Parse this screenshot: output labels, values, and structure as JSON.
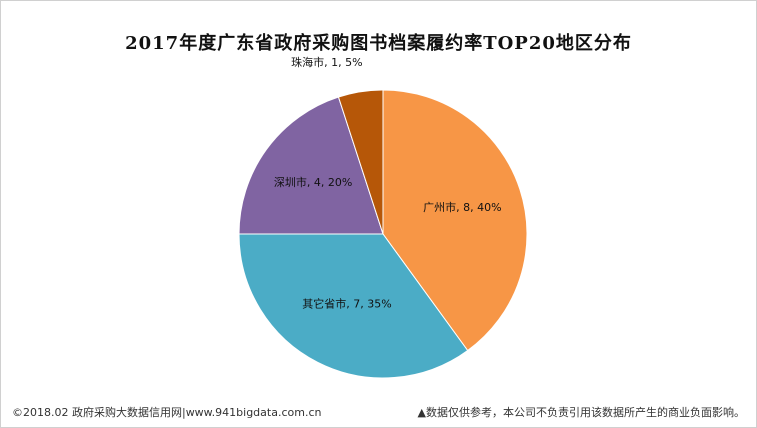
{
  "chart_data": {
    "type": "pie",
    "title": "2017年度广东省政府采购图书档案履约率TOP20地区分布",
    "slices": [
      {
        "name": "广州市",
        "value": 8,
        "percent": "40%",
        "color": "#F79646"
      },
      {
        "name": "其它省市",
        "value": 7,
        "percent": "35%",
        "color": "#4BACC6"
      },
      {
        "name": "深圳市",
        "value": 4,
        "percent": "20%",
        "color": "#8064A2"
      },
      {
        "name": "珠海市",
        "value": 1,
        "percent": "5%",
        "color": "#B65708"
      }
    ]
  },
  "footer": {
    "source": "©2018.02 政府采购大数据信用网|www.941bigdata.com.cn",
    "disclaimer": "▲数据仅供参考，本公司不负责引用该数据所产生的商业负面影响。"
  }
}
